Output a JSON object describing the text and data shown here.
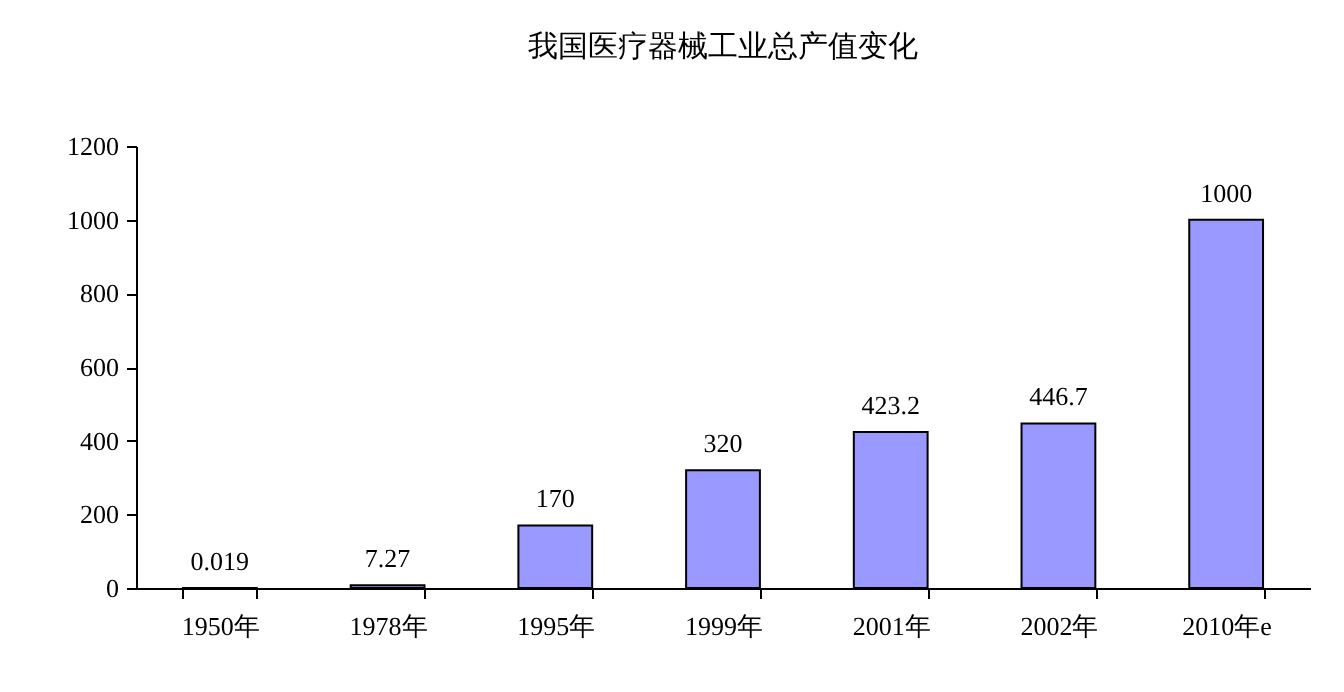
{
  "chart_data": {
    "type": "bar",
    "title": "我国医疗器械工业总产值变化",
    "categories": [
      "1950年",
      "1978年",
      "1995年",
      "1999年",
      "2001年",
      "2002年",
      "2010年e"
    ],
    "values": [
      0.019,
      7.27,
      170,
      320,
      423.2,
      446.7,
      1000
    ],
    "color": "#9999ff",
    "ylim": [
      0,
      1200
    ],
    "yticks": [
      0,
      200,
      400,
      600,
      800,
      1000,
      1200
    ],
    "data_labels": true,
    "grid": false
  }
}
